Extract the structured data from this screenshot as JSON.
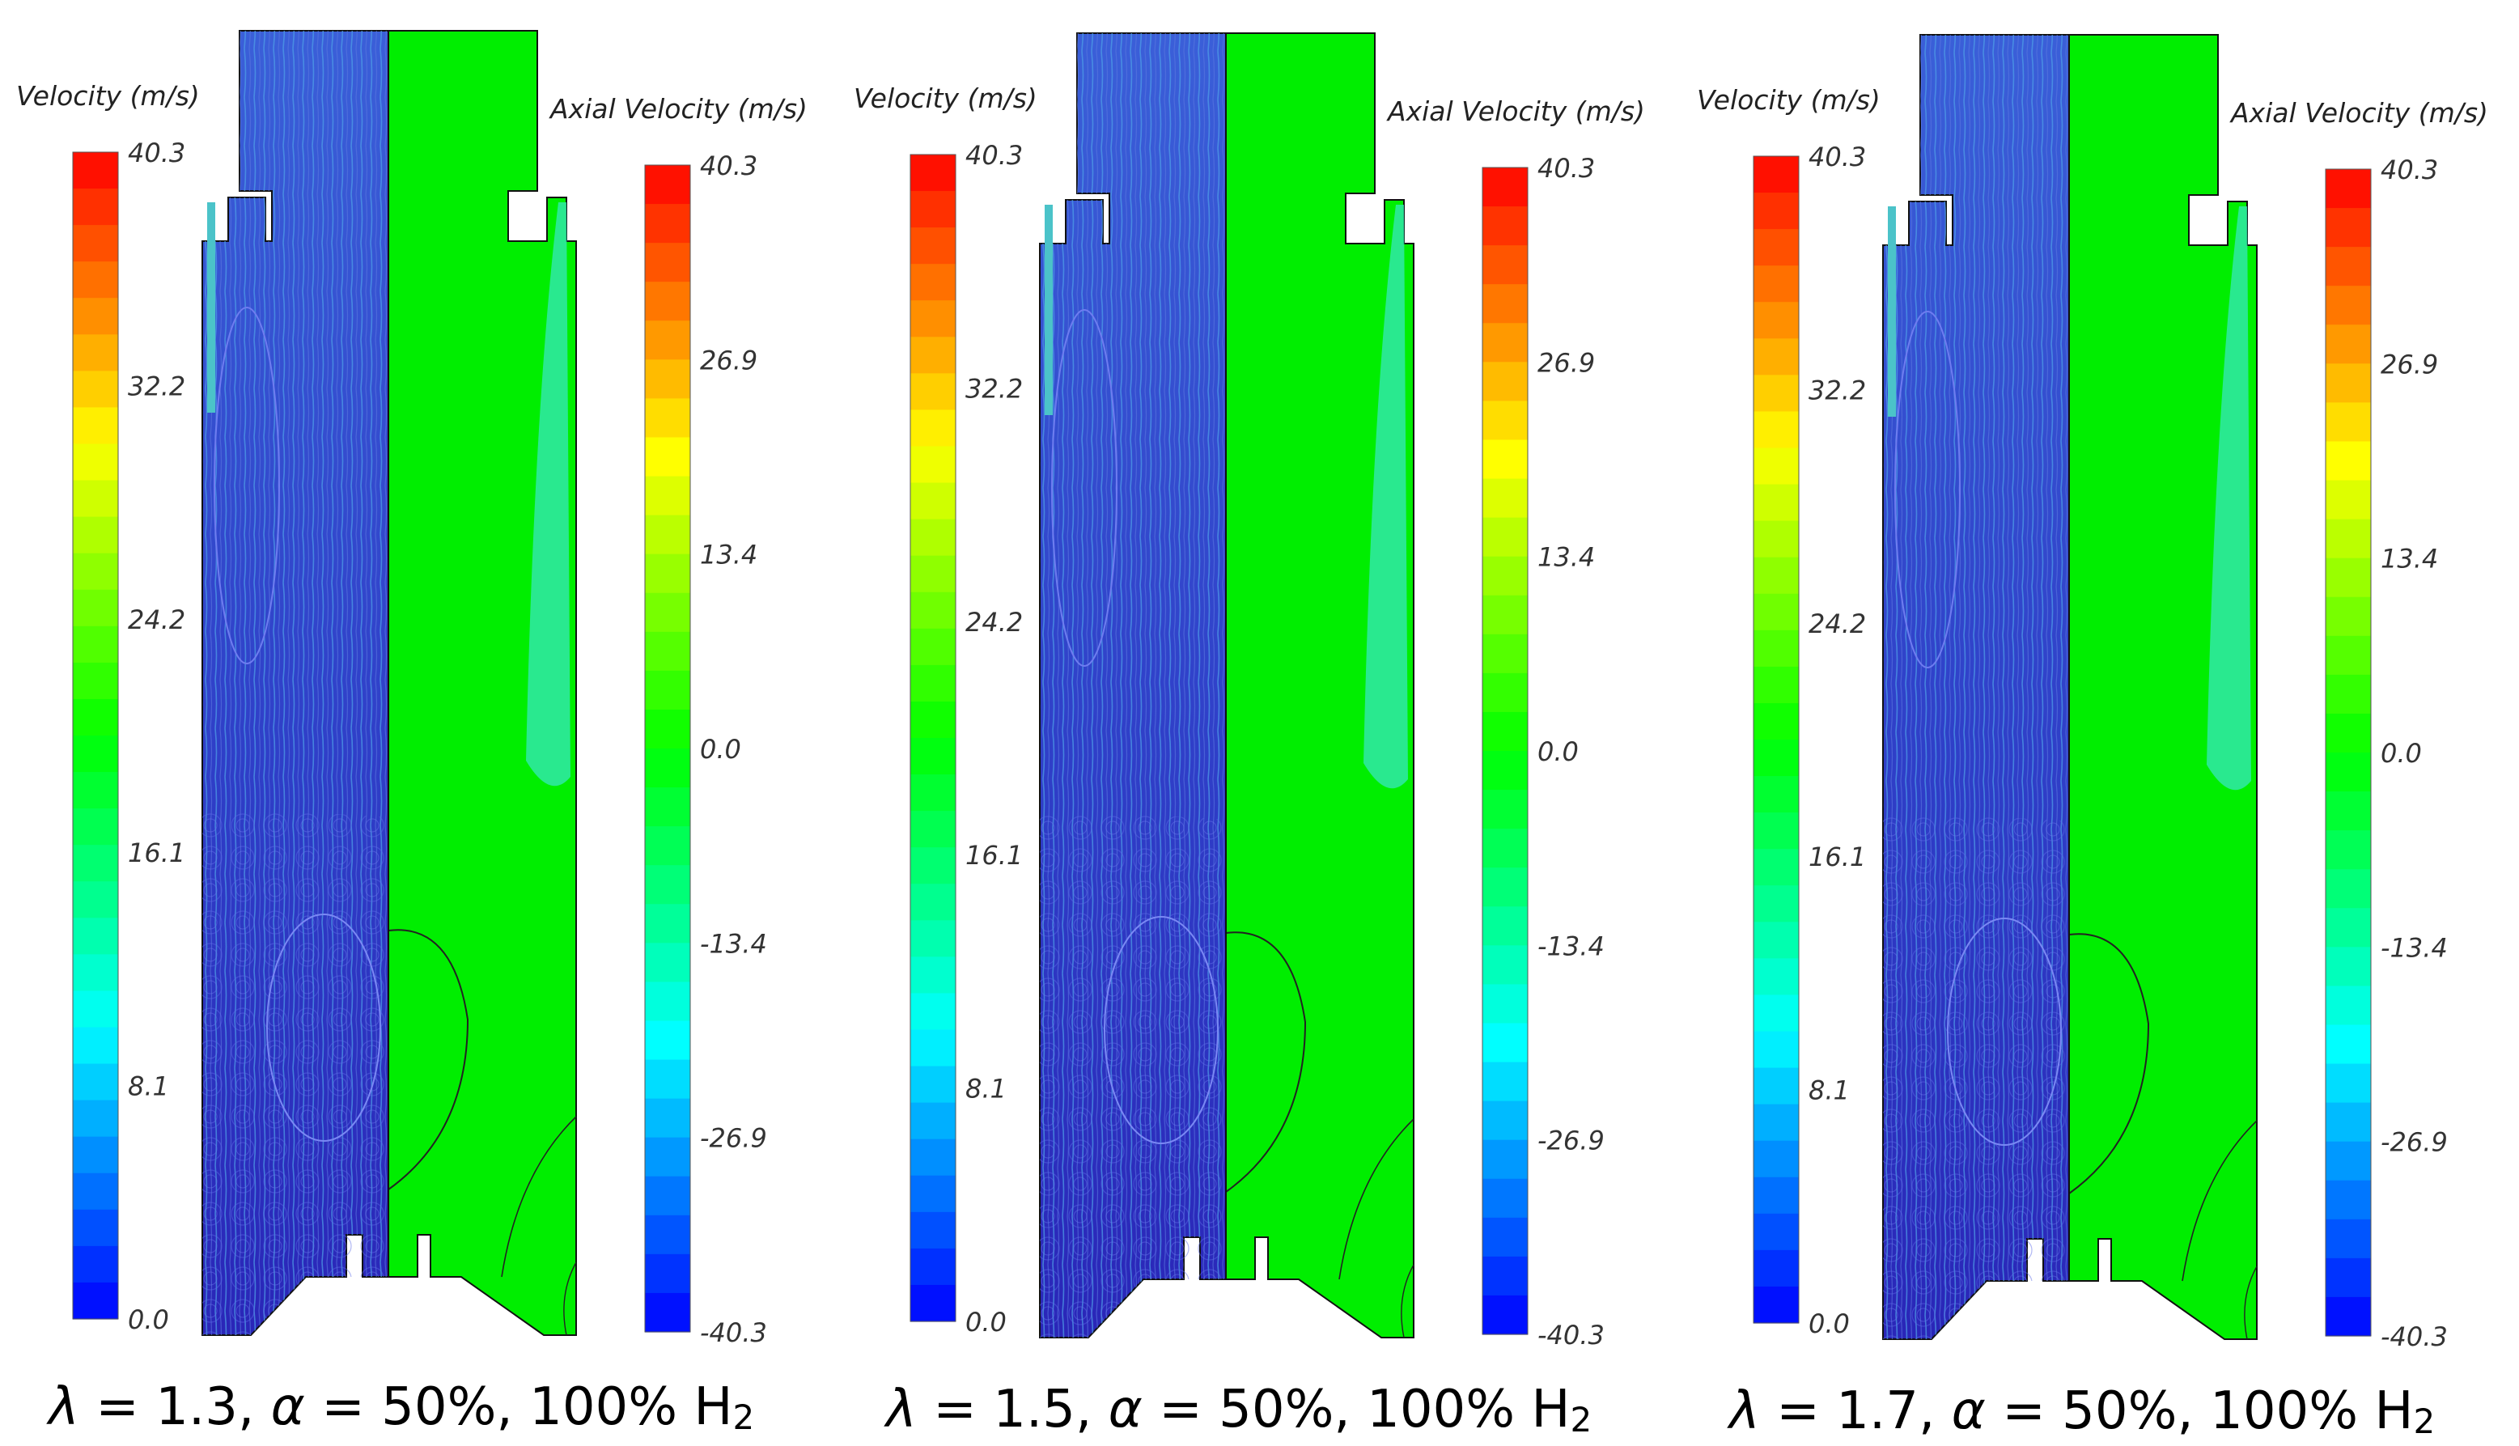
{
  "scale_velocity": {
    "title": "Velocity (m/s)",
    "ticks": [
      "40.3",
      "32.2",
      "24.2",
      "16.1",
      "8.1",
      "0.0"
    ],
    "colors": [
      "#0000ff",
      "#00ffff",
      "#00ff00",
      "#ffff00",
      "#ff0000"
    ]
  },
  "scale_axial": {
    "title": "Axial Velocity (m/s)",
    "ticks": [
      "40.3",
      "26.9",
      "13.4",
      "0.0",
      "-13.4",
      "-26.9",
      "-40.3"
    ],
    "colors": [
      "#0000ff",
      "#00ffff",
      "#00ff00",
      "#ffff00",
      "#ff0000"
    ]
  },
  "panels": [
    {
      "caption_lambda": "λ",
      "caption_mid": " = 1.3, ",
      "caption_alpha": "α",
      "caption_rest": " = 50%, 100% H",
      "caption_sub": "2"
    },
    {
      "caption_lambda": "λ",
      "caption_mid": " = 1.5, ",
      "caption_alpha": "α",
      "caption_rest": " = 50%, 100% H",
      "caption_sub": "2"
    },
    {
      "caption_lambda": "λ",
      "caption_mid": " = 1.7, ",
      "caption_alpha": "α",
      "caption_rest": " = 50%, 100% H",
      "caption_sub": "2"
    }
  ]
}
